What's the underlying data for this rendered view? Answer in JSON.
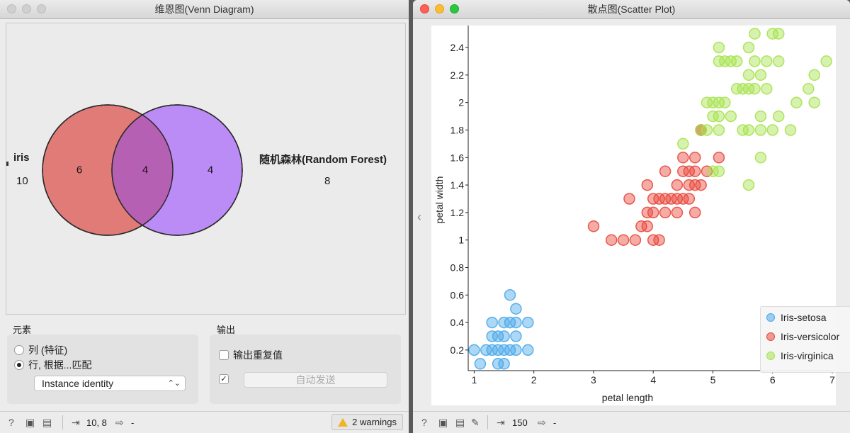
{
  "venn": {
    "title": "维恩图(Venn Diagram)",
    "set_a": {
      "name": "iris",
      "total": "10",
      "only": "6"
    },
    "set_b": {
      "name": "随机森林(Random Forest)",
      "total": "8",
      "only": "4"
    },
    "intersection": "4",
    "colors": {
      "set_a": "#e07b78",
      "set_b": "#bb8cf5",
      "overlap": "#b660b4"
    },
    "elements_group": {
      "label": "元素",
      "option_columns": "列 (特征)",
      "option_rows": "行, 根据...匹配",
      "selected": "rows",
      "match_select": "Instance identity"
    },
    "output_group": {
      "label": "输出",
      "duplicates_label": "输出重复值",
      "duplicates_checked": false,
      "auto_send_checked": true,
      "auto_send_label": "自动发送"
    },
    "status": {
      "io_value": "10, 8",
      "output_value": "-",
      "warnings": "2 warnings"
    }
  },
  "scatter": {
    "title": "散点图(Scatter Plot)",
    "status": {
      "input_value": "150",
      "output_value": "-"
    },
    "chart_data": {
      "type": "scatter",
      "xlabel": "petal length",
      "ylabel": "petal width",
      "xlim": [
        0.9,
        7.0
      ],
      "ylim": [
        0.05,
        2.56
      ],
      "x_ticks": [
        "1",
        "2",
        "3",
        "4",
        "5",
        "6",
        "7"
      ],
      "y_ticks": [
        "0.2",
        "0.4",
        "0.6",
        "0.8",
        "1",
        "1.2",
        "1.4",
        "1.6",
        "1.8",
        "2",
        "2.2",
        "2.4"
      ],
      "legend_position": "bottom-right",
      "series": [
        {
          "name": "Iris-setosa",
          "color": "#4aa8e8",
          "points": [
            [
              1.0,
              0.2
            ],
            [
              1.2,
              0.2
            ],
            [
              1.3,
              0.2
            ],
            [
              1.4,
              0.2
            ],
            [
              1.5,
              0.2
            ],
            [
              1.6,
              0.2
            ],
            [
              1.7,
              0.2
            ],
            [
              1.9,
              0.2
            ],
            [
              1.1,
              0.1
            ],
            [
              1.4,
              0.1
            ],
            [
              1.5,
              0.1
            ],
            [
              1.3,
              0.3
            ],
            [
              1.4,
              0.3
            ],
            [
              1.5,
              0.3
            ],
            [
              1.7,
              0.3
            ],
            [
              1.3,
              0.4
            ],
            [
              1.5,
              0.4
            ],
            [
              1.6,
              0.4
            ],
            [
              1.7,
              0.4
            ],
            [
              1.9,
              0.4
            ],
            [
              1.7,
              0.5
            ],
            [
              1.6,
              0.6
            ]
          ]
        },
        {
          "name": "Iris-versicolor",
          "color": "#e8483b",
          "points": [
            [
              3.0,
              1.1
            ],
            [
              3.3,
              1.0
            ],
            [
              3.5,
              1.0
            ],
            [
              3.7,
              1.0
            ],
            [
              3.9,
              1.1
            ],
            [
              4.0,
              1.0
            ],
            [
              4.1,
              1.0
            ],
            [
              3.6,
              1.3
            ],
            [
              3.8,
              1.1
            ],
            [
              3.9,
              1.2
            ],
            [
              4.0,
              1.2
            ],
            [
              4.2,
              1.2
            ],
            [
              4.4,
              1.2
            ],
            [
              4.7,
              1.2
            ],
            [
              4.0,
              1.3
            ],
            [
              4.1,
              1.3
            ],
            [
              4.2,
              1.3
            ],
            [
              4.3,
              1.3
            ],
            [
              4.4,
              1.3
            ],
            [
              4.5,
              1.3
            ],
            [
              4.6,
              1.3
            ],
            [
              3.9,
              1.4
            ],
            [
              4.4,
              1.4
            ],
            [
              4.6,
              1.4
            ],
            [
              4.7,
              1.4
            ],
            [
              4.8,
              1.4
            ],
            [
              4.2,
              1.5
            ],
            [
              4.5,
              1.5
            ],
            [
              4.6,
              1.5
            ],
            [
              4.7,
              1.5
            ],
            [
              4.9,
              1.5
            ],
            [
              4.5,
              1.6
            ],
            [
              4.7,
              1.6
            ],
            [
              5.1,
              1.6
            ],
            [
              4.8,
              1.8
            ],
            [
              4.8,
              1.8
            ]
          ]
        },
        {
          "name": "Iris-virginica",
          "color": "#a6e24e",
          "points": [
            [
              4.5,
              1.7
            ],
            [
              4.8,
              1.8
            ],
            [
              4.9,
              1.8
            ],
            [
              5.1,
              1.8
            ],
            [
              5.5,
              1.8
            ],
            [
              5.6,
              1.8
            ],
            [
              5.8,
              1.8
            ],
            [
              6.0,
              1.8
            ],
            [
              6.3,
              1.8
            ],
            [
              5.0,
              1.5
            ],
            [
              5.1,
              1.5
            ],
            [
              5.6,
              1.4
            ],
            [
              5.8,
              1.6
            ],
            [
              5.0,
              1.9
            ],
            [
              5.1,
              1.9
            ],
            [
              5.3,
              1.9
            ],
            [
              5.8,
              1.9
            ],
            [
              6.1,
              1.9
            ],
            [
              4.9,
              2.0
            ],
            [
              5.0,
              2.0
            ],
            [
              5.1,
              2.0
            ],
            [
              5.2,
              2.0
            ],
            [
              6.4,
              2.0
            ],
            [
              6.7,
              2.0
            ],
            [
              5.4,
              2.1
            ],
            [
              5.5,
              2.1
            ],
            [
              5.6,
              2.1
            ],
            [
              5.7,
              2.1
            ],
            [
              5.9,
              2.1
            ],
            [
              6.6,
              2.1
            ],
            [
              5.6,
              2.2
            ],
            [
              5.8,
              2.2
            ],
            [
              6.7,
              2.2
            ],
            [
              5.1,
              2.3
            ],
            [
              5.2,
              2.3
            ],
            [
              5.3,
              2.3
            ],
            [
              5.4,
              2.3
            ],
            [
              5.7,
              2.3
            ],
            [
              5.9,
              2.3
            ],
            [
              6.1,
              2.3
            ],
            [
              6.9,
              2.3
            ],
            [
              5.1,
              2.4
            ],
            [
              5.6,
              2.4
            ],
            [
              5.7,
              2.5
            ],
            [
              6.0,
              2.5
            ],
            [
              6.1,
              2.5
            ]
          ]
        }
      ]
    }
  }
}
